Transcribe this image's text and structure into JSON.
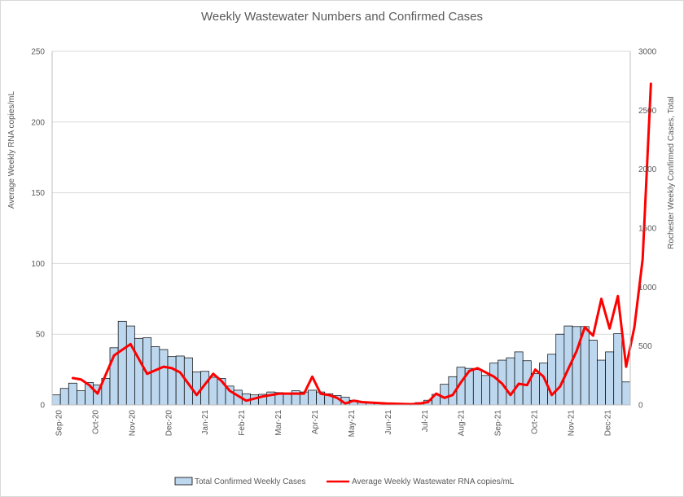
{
  "chart_data": {
    "type": "bar+line",
    "title": "Weekly Wastewater Numbers and Confirmed Cases",
    "ylabel_left": "Average Weekly RNA  copies/mL",
    "ylabel_right": "Rochester Weekly Confirmed Cases, Total",
    "ylim_left": [
      0,
      250
    ],
    "ylim_right": [
      0,
      3000
    ],
    "yticks_left": [
      "0",
      "50",
      "100",
      "150",
      "200",
      "250"
    ],
    "yticks_right": [
      "0",
      "500",
      "1000",
      "1500",
      "2000",
      "2500",
      "3000"
    ],
    "xticks": [
      "Sep-20",
      "Oct-20",
      "Nov-20",
      "Dec-20",
      "Jan-21",
      "Feb-21",
      "Mar-21",
      "Apr-21",
      "May-21",
      "Jun-21",
      "Jul-21",
      "Aug-21",
      "Sep-21",
      "Oct-21",
      "Nov-21",
      "Dec-21"
    ],
    "grid": true,
    "legend_position": "bottom",
    "series": [
      {
        "name": "Total Confirmed Weekly Cases",
        "type": "bar",
        "axis": "right",
        "color": "#bdd7ee",
        "values": [
          85,
          140,
          185,
          120,
          190,
          170,
          225,
          485,
          710,
          670,
          565,
          570,
          495,
          470,
          410,
          415,
          400,
          280,
          285,
          235,
          225,
          160,
          125,
          95,
          85,
          90,
          110,
          105,
          100,
          120,
          110,
          125,
          110,
          95,
          80,
          65,
          40,
          25,
          20,
          15,
          10,
          10,
          10,
          10,
          20,
          40,
          90,
          175,
          240,
          320,
          310,
          300,
          250,
          355,
          380,
          400,
          450,
          375,
          265,
          355,
          430,
          600,
          670,
          665,
          665,
          550,
          380,
          450,
          605,
          195
        ]
      },
      {
        "name": "Average Weekly Wastewater RNA copies/mL",
        "type": "line",
        "axis": "left",
        "color": "#ff0000",
        "points": [
          [
            2.5,
            19
          ],
          [
            3.5,
            18
          ],
          [
            4.5,
            14
          ],
          [
            5.5,
            8
          ],
          [
            7.5,
            35
          ],
          [
            8.5,
            39
          ],
          [
            9.5,
            43
          ],
          [
            11.5,
            22
          ],
          [
            13.5,
            27
          ],
          [
            14.5,
            26
          ],
          [
            15.5,
            23
          ],
          [
            17.5,
            7
          ],
          [
            19.5,
            22
          ],
          [
            20.5,
            17
          ],
          [
            21.5,
            10
          ],
          [
            23.5,
            3
          ],
          [
            25.5,
            6
          ],
          [
            27.5,
            8
          ],
          [
            30.5,
            8
          ],
          [
            31.5,
            20
          ],
          [
            32.5,
            8
          ],
          [
            33.5,
            7
          ],
          [
            34.5,
            5
          ],
          [
            35.5,
            1
          ],
          [
            36.5,
            3
          ],
          [
            37.5,
            2
          ],
          [
            40.5,
            1
          ],
          [
            43.5,
            0.5
          ],
          [
            44.5,
            1
          ],
          [
            45.5,
            2
          ],
          [
            46.5,
            8
          ],
          [
            47.5,
            5
          ],
          [
            48.5,
            7
          ],
          [
            49.5,
            16
          ],
          [
            50.5,
            24
          ],
          [
            51.5,
            26
          ],
          [
            53.5,
            20
          ],
          [
            54.5,
            15
          ],
          [
            55.5,
            7
          ],
          [
            56.5,
            15
          ],
          [
            57.5,
            14
          ],
          [
            58.5,
            25
          ],
          [
            59.5,
            20
          ],
          [
            60.5,
            7
          ],
          [
            61.5,
            13
          ],
          [
            63.5,
            38
          ],
          [
            64.5,
            55
          ],
          [
            65.5,
            49
          ],
          [
            66.5,
            75
          ],
          [
            67.5,
            54
          ],
          [
            68.5,
            77
          ],
          [
            69.5,
            27
          ],
          [
            70.5,
            55
          ],
          [
            71.5,
            103
          ],
          [
            72.5,
            227
          ]
        ]
      }
    ]
  }
}
